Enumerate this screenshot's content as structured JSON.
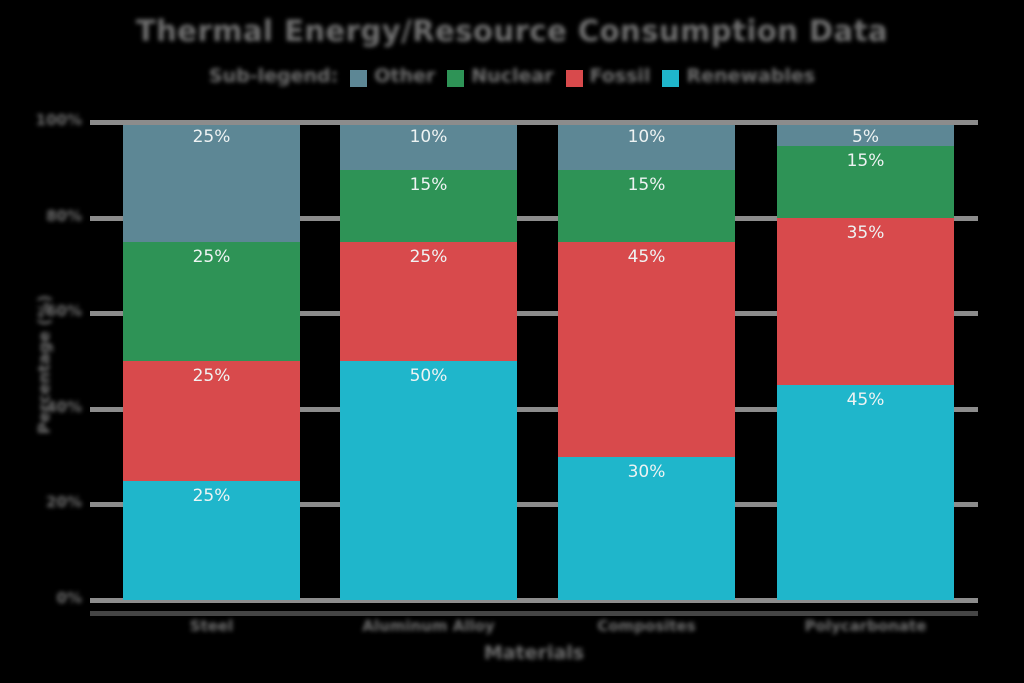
{
  "chart_data": {
    "type": "bar",
    "stacked": true,
    "percent_total": 100,
    "title": "Thermal Energy/Resource Consumption Data",
    "legend_intro": "Sub-legend:",
    "legend_position": "top",
    "grid": true,
    "background_color": "#000000",
    "text_color": "#707070",
    "grid_color": "#8c8c8c",
    "xlabel": "Materials",
    "ylabel": "Percentage (%)",
    "ylim": [
      0,
      100
    ],
    "y_ticks": [
      {
        "label": "100%",
        "value": 100
      },
      {
        "label": "80%",
        "value": 80
      },
      {
        "label": "60%",
        "value": 60
      },
      {
        "label": "40%",
        "value": 40
      },
      {
        "label": "20%",
        "value": 20
      },
      {
        "label": "0%",
        "value": 0
      }
    ],
    "categories": [
      "Steel",
      "Aluminum Alloy",
      "Composites",
      "Polycarbonate"
    ],
    "legend": [
      {
        "label": "Other",
        "color": "#5d8795"
      },
      {
        "label": "Nuclear",
        "color": "#2e9356"
      },
      {
        "label": "Fossil",
        "color": "#d84a4c"
      },
      {
        "label": "Renewables",
        "color": "#1fb6cb"
      }
    ],
    "series": [
      {
        "name": "Renewables",
        "color": "#1fb6cb",
        "values": [
          25,
          50,
          30,
          45
        ]
      },
      {
        "name": "Fossil",
        "color": "#d84a4c",
        "values": [
          25,
          25,
          45,
          35
        ]
      },
      {
        "name": "Nuclear",
        "color": "#2e9356",
        "values": [
          25,
          15,
          15,
          15
        ]
      },
      {
        "name": "Other",
        "color": "#5d8795",
        "values": [
          25,
          10,
          10,
          5
        ]
      }
    ],
    "bar_labels": [
      [
        "25%",
        "25%",
        "25%",
        "25%"
      ],
      [
        "50%",
        "25%",
        "15%",
        "10%"
      ],
      [
        "30%",
        "45%",
        "15%",
        "10%"
      ],
      [
        "45%",
        "35%",
        "15%",
        "5%"
      ]
    ]
  }
}
